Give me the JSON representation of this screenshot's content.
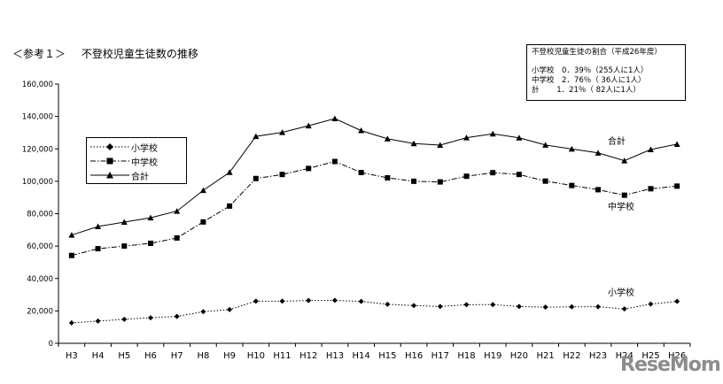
{
  "header": {
    "label": "＜参考１＞",
    "title": "不登校児童生徒数の推移"
  },
  "info_box": {
    "title": "不登校児童生徒の割合（平成26年度）",
    "rows": [
      "小学校　0．39％（255人に1人）",
      "中学校　2．76％（ 36人に1人）",
      "計　　 1．21％（ 82人に1人）"
    ]
  },
  "watermark": "ReseMom",
  "colors": {
    "line": "#000000",
    "background": "#ffffff"
  },
  "chart_data": {
    "type": "line",
    "title": "不登校児童生徒数の推移",
    "xlabel": "",
    "ylabel": "",
    "ylim": [
      0,
      160000
    ],
    "yticks": [
      0,
      20000,
      40000,
      60000,
      80000,
      100000,
      120000,
      140000,
      160000
    ],
    "ytick_labels": [
      "0",
      "20,000",
      "40,000",
      "60,000",
      "80,000",
      "100,000",
      "120,000",
      "140,000",
      "160,000"
    ],
    "grid": false,
    "legend_position": "left",
    "categories": [
      "H3",
      "H4",
      "H5",
      "H6",
      "H7",
      "H8",
      "H9",
      "H10",
      "H11",
      "H12",
      "H13",
      "H14",
      "H15",
      "H16",
      "H17",
      "H18",
      "H19",
      "H20",
      "H21",
      "H22",
      "H23",
      "H24",
      "H25",
      "H26"
    ],
    "series": [
      {
        "name": "小学校",
        "marker": "diamond",
        "dash": "dot",
        "values": [
          12600,
          13700,
          14800,
          15800,
          16600,
          19500,
          20800,
          26000,
          26000,
          26400,
          26500,
          25900,
          24100,
          23300,
          22700,
          23800,
          23900,
          22700,
          22300,
          22500,
          22600,
          21200,
          24200,
          25900
        ]
      },
      {
        "name": "中学校",
        "marker": "square",
        "dash": "dashdot",
        "values": [
          54200,
          58400,
          60000,
          61700,
          65000,
          74900,
          84700,
          101700,
          104200,
          107900,
          112200,
          105400,
          102100,
          100000,
          99600,
          103100,
          105300,
          104200,
          100100,
          97400,
          94800,
          91400,
          95400,
          97000
        ]
      },
      {
        "name": "合計",
        "marker": "triangle",
        "dash": "solid",
        "values": [
          66800,
          72100,
          74800,
          77500,
          81600,
          94400,
          105500,
          127700,
          130200,
          134300,
          138700,
          131300,
          126200,
          123300,
          122300,
          126900,
          129300,
          126800,
          122400,
          119900,
          117500,
          112700,
          119600,
          122900
        ]
      }
    ],
    "annotations": [
      "合計",
      "中学校",
      "小学校"
    ]
  }
}
